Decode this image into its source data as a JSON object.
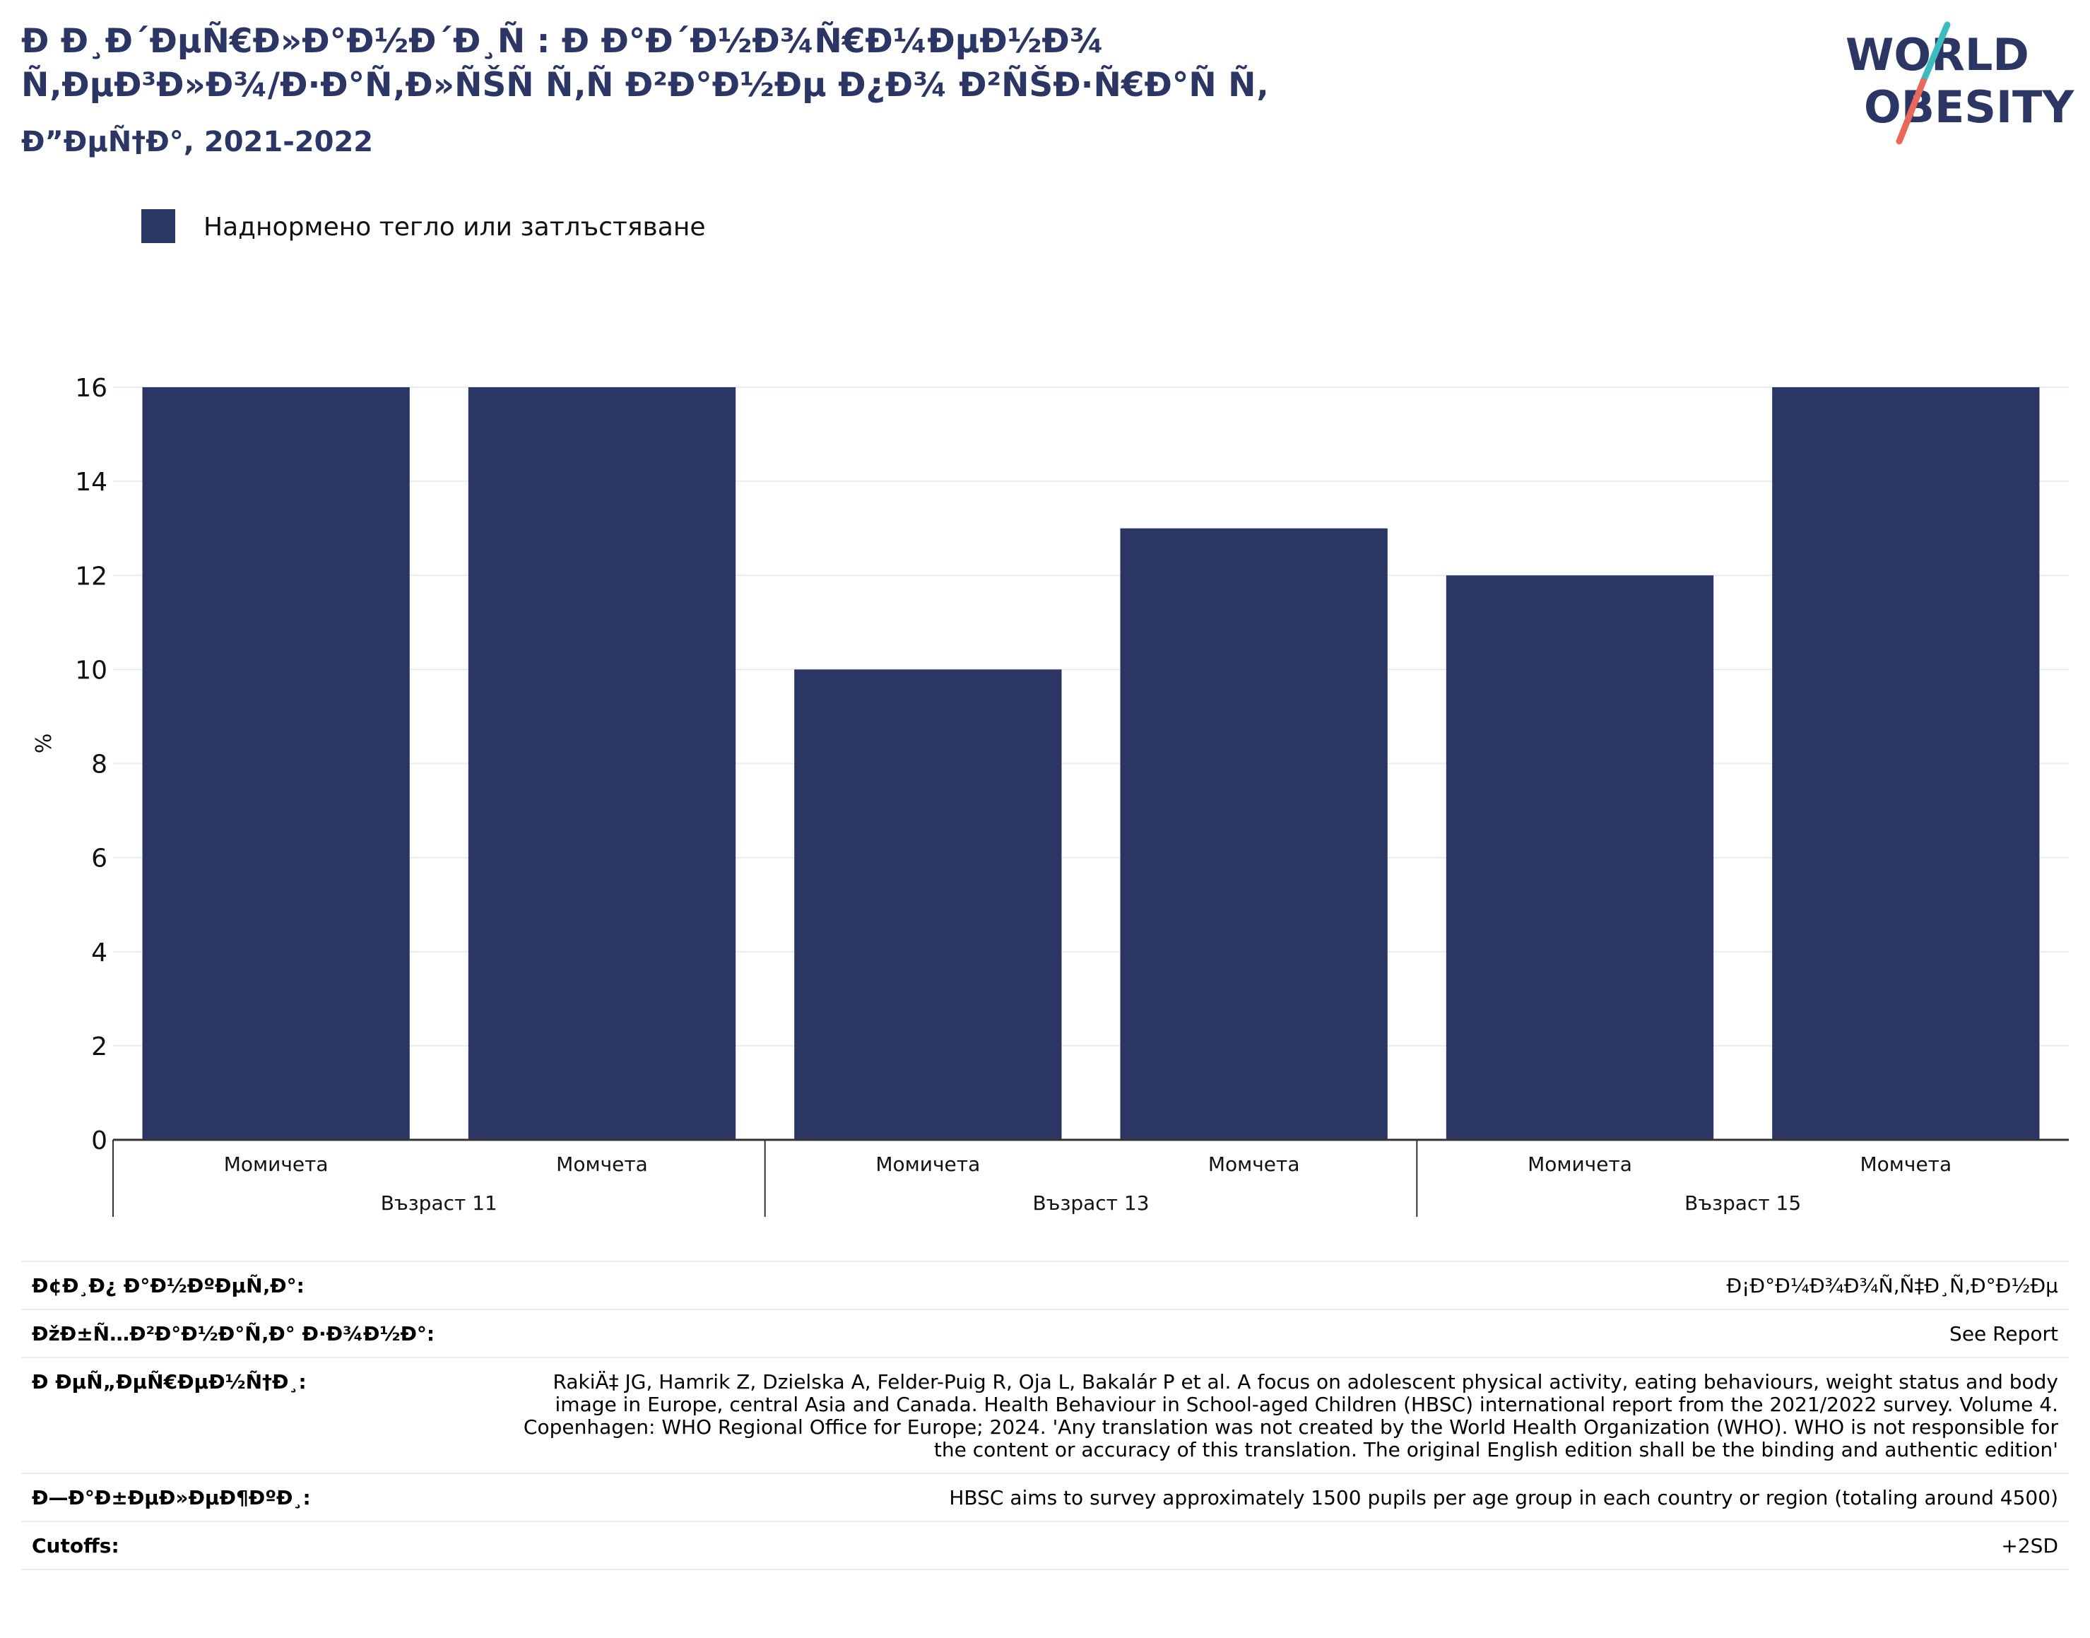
{
  "title": {
    "line1": "Ð Ð¸Ð´ÐµÑ€Ð»Ð°Ð½Ð´Ð¸Ñ : Ð Ð°Ð´Ð½Ð¾Ñ€Ð¼ÐµÐ½Ð¾",
    "line2": "Ñ‚ÐµÐ³Ð»Ð¾/Ð·Ð°Ñ‚Ð»ÑŠÑ Ñ‚Ñ Ð²Ð°Ð½Ðµ Ð¿Ð¾ Ð²ÑŠÐ·Ñ€Ð°Ñ Ñ‚",
    "subtitle": "Ð”ÐµÑ†Ð°, 2021-2022"
  },
  "logo": {
    "word1": "WORLD",
    "word2": "OBESITY",
    "slash_top_color": "#3dbbbf",
    "slash_bottom_color": "#e8685a",
    "text_color": "#2b3664"
  },
  "colors": {
    "bar": "#2b3664",
    "grid": "#e9ecf2",
    "axis": "#333333"
  },
  "chart_data": {
    "type": "bar",
    "legend": {
      "label": "Наднормено тегло или затлъстяване",
      "placement": "top-left"
    },
    "ylabel": "%",
    "ylim": [
      0,
      16
    ],
    "yticks": [
      0,
      2,
      4,
      6,
      8,
      10,
      12,
      14,
      16
    ],
    "grid": true,
    "groups": [
      {
        "label": "Възраст 11",
        "bars": [
          {
            "category": "Момичета",
            "value": 16
          },
          {
            "category": "Момчета",
            "value": 16
          }
        ]
      },
      {
        "label": "Възраст 13",
        "bars": [
          {
            "category": "Момичета",
            "value": 10
          },
          {
            "category": "Момчета",
            "value": 13
          }
        ]
      },
      {
        "label": "Възраст 15",
        "bars": [
          {
            "category": "Момичета",
            "value": 12
          },
          {
            "category": "Момчета",
            "value": 16
          }
        ]
      }
    ]
  },
  "footer": [
    {
      "label": "Ð¢Ð¸Ð¿ Ð°Ð½ÐºÐµÑ‚Ð°:",
      "value": "Ð¡Ð°Ð¼Ð¾Ð¾Ñ‚Ñ‡Ð¸Ñ‚Ð°Ð½Ðµ"
    },
    {
      "label": "ÐžÐ±Ñ…Ð²Ð°Ð½Ð°Ñ‚Ð° Ð·Ð¾Ð½Ð°:",
      "value": "See Report"
    },
    {
      "label": "Ð ÐµÑ„ÐµÑ€ÐµÐ½Ñ†Ð¸:",
      "value": "RakiÄ‡ JG, Hamrik Z, Dzielska A, Felder-Puig R, Oja L, Bakalár P et al. A focus on adolescent physical activity, eating behaviours, weight status and body image in Europe, central Asia and Canada. Health Behaviour in School-aged Children (HBSC) international report from the 2021/2022 survey. Volume 4. Copenhagen: WHO Regional Office for Europe; 2024. 'Any translation was not created by the World Health Organization (WHO). WHO is not responsible for the content or accuracy of this translation. The original English edition shall be the binding and authentic edition'"
    },
    {
      "label": "Ð—Ð°Ð±ÐµÐ»ÐµÐ¶ÐºÐ¸:",
      "value": "HBSC aims to survey approximately 1500 pupils per age group in each country or region (totaling around 4500)"
    },
    {
      "label": "Cutoffs:",
      "value": "+2SD"
    }
  ]
}
